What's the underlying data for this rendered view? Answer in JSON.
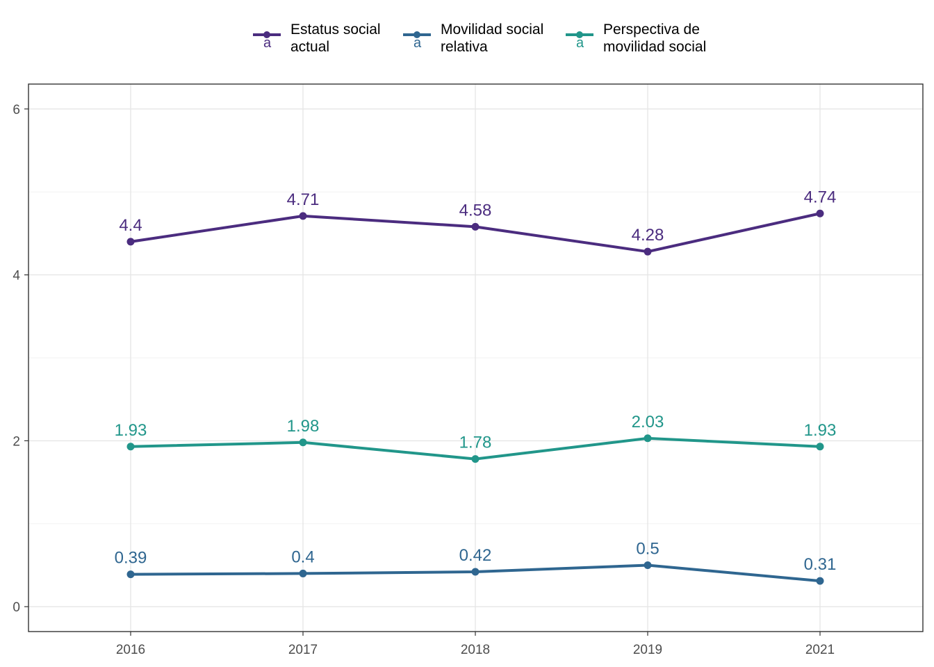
{
  "chart_data": {
    "type": "line",
    "title": "",
    "xlabel": "",
    "ylabel": "",
    "categories": [
      "2016",
      "2017",
      "2018",
      "2019",
      "2021"
    ],
    "ylim": [
      -0.3,
      6.3
    ],
    "yticks": [
      0,
      2,
      4,
      6
    ],
    "ytick_labels": [
      "0",
      "2",
      "4",
      "6"
    ],
    "grid": true,
    "legend_position": "top",
    "series": [
      {
        "name_lines": [
          "Estatus social",
          "actual"
        ],
        "color": "#4B2C7F",
        "values": [
          4.4,
          4.71,
          4.58,
          4.28,
          4.74
        ],
        "labels": [
          "4.4",
          "4.71",
          "4.58",
          "4.28",
          "4.74"
        ]
      },
      {
        "name_lines": [
          "Movilidad social",
          "relativa"
        ],
        "color": "#2F6690",
        "values": [
          0.39,
          0.4,
          0.42,
          0.5,
          0.31
        ],
        "labels": [
          "0.39",
          "0.4",
          "0.42",
          "0.5",
          "0.31"
        ]
      },
      {
        "name_lines": [
          "Perspectiva de",
          "movilidad social"
        ],
        "color": "#21968A",
        "values": [
          1.93,
          1.98,
          1.78,
          2.03,
          1.93
        ],
        "labels": [
          "1.93",
          "1.98",
          "1.78",
          "2.03",
          "1.93"
        ]
      }
    ]
  }
}
